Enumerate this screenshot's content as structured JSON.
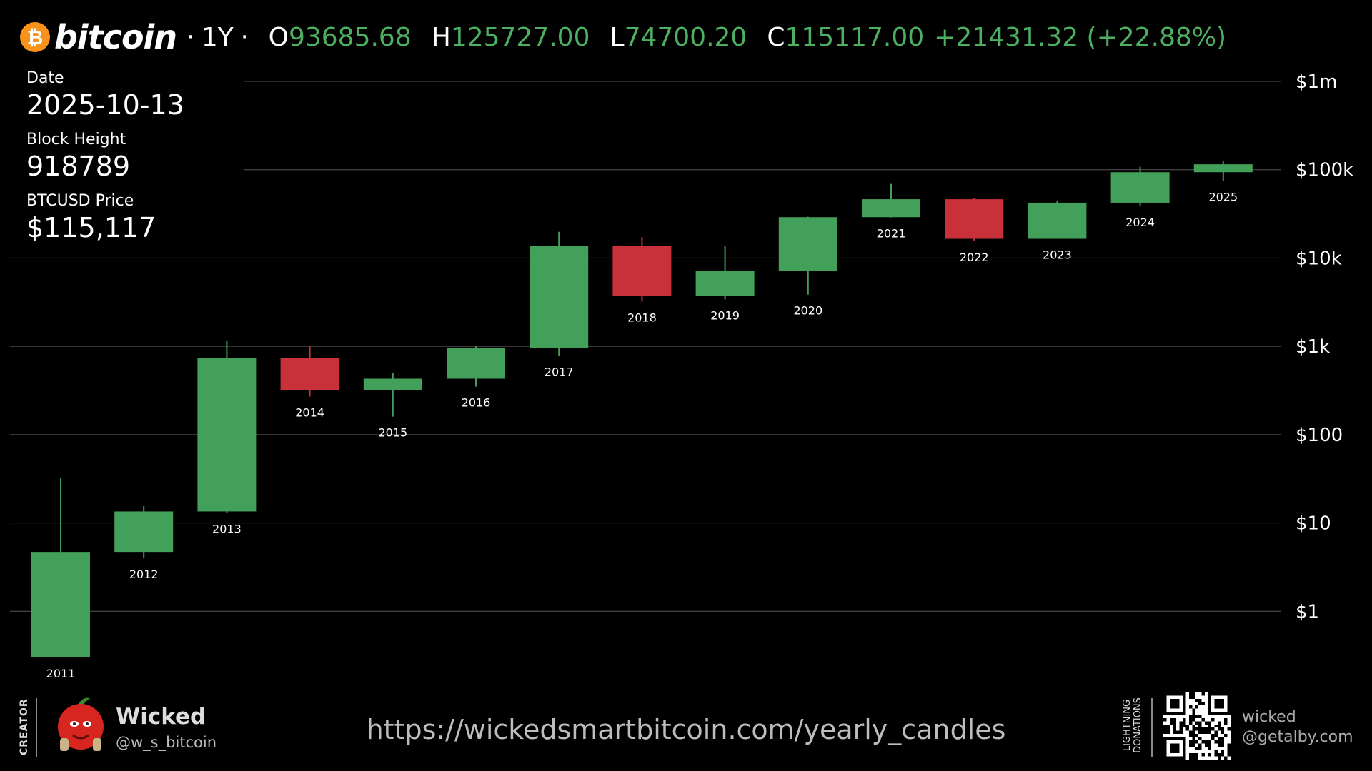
{
  "header": {
    "logo_symbol": "₿",
    "brand": "bitcoin",
    "separator": "·",
    "timeframe": "1Y",
    "open_label": "O",
    "open": "93685.68",
    "high_label": "H",
    "high": "125727.00",
    "low_label": "L",
    "low": "74700.20",
    "close_label": "C",
    "close": "115117.00",
    "change": "+21431.32 (+22.88%)"
  },
  "info": {
    "date_label": "Date",
    "date": "2025-10-13",
    "block_label": "Block Height",
    "block": "918789",
    "price_label": "BTCUSD Price",
    "price": "$115,117"
  },
  "chart_data": {
    "type": "candlestick",
    "y_scale": "log",
    "ylim": [
      0.1,
      1000000
    ],
    "y_ticks": [
      {
        "value": 1,
        "label": "$1"
      },
      {
        "value": 10,
        "label": "$10"
      },
      {
        "value": 100,
        "label": "$100"
      },
      {
        "value": 1000,
        "label": "$1k"
      },
      {
        "value": 10000,
        "label": "$10k"
      },
      {
        "value": 100000,
        "label": "$100k"
      },
      {
        "value": 1000000,
        "label": "$1m"
      }
    ],
    "grid": true,
    "candles": [
      {
        "year": "2011",
        "open": 0.3,
        "high": 32,
        "low": 0.3,
        "close": 4.7
      },
      {
        "year": "2012",
        "open": 4.7,
        "high": 15.5,
        "low": 4.0,
        "close": 13.5
      },
      {
        "year": "2013",
        "open": 13.5,
        "high": 1150,
        "low": 13,
        "close": 740
      },
      {
        "year": "2014",
        "open": 740,
        "high": 1000,
        "low": 270,
        "close": 320
      },
      {
        "year": "2015",
        "open": 320,
        "high": 500,
        "low": 160,
        "close": 430
      },
      {
        "year": "2016",
        "open": 430,
        "high": 1000,
        "low": 350,
        "close": 960
      },
      {
        "year": "2017",
        "open": 960,
        "high": 19800,
        "low": 780,
        "close": 13800
      },
      {
        "year": "2018",
        "open": 13800,
        "high": 17200,
        "low": 3200,
        "close": 3700
      },
      {
        "year": "2019",
        "open": 3700,
        "high": 13800,
        "low": 3400,
        "close": 7200
      },
      {
        "year": "2020",
        "open": 7200,
        "high": 29300,
        "low": 3850,
        "close": 29000
      },
      {
        "year": "2021",
        "open": 29000,
        "high": 69000,
        "low": 28800,
        "close": 46300
      },
      {
        "year": "2022",
        "open": 46300,
        "high": 48000,
        "low": 15500,
        "close": 16500
      },
      {
        "year": "2023",
        "open": 16500,
        "high": 44700,
        "low": 16500,
        "close": 42300
      },
      {
        "year": "2024",
        "open": 42300,
        "high": 108000,
        "low": 38500,
        "close": 93685.68
      },
      {
        "year": "2025",
        "open": 93685.68,
        "high": 125727.0,
        "low": 74700.2,
        "close": 115117.0
      }
    ],
    "colors": {
      "up": "#43a05a",
      "down": "#c8313a",
      "grid": "#555555",
      "text": "#ffffff"
    }
  },
  "footer": {
    "creator_label": "CREATOR",
    "creator_name": "Wicked",
    "creator_handle": "@w_s_bitcoin",
    "url": "https://wickedsmartbitcoin.com/yearly_candles",
    "donations_label_1": "LIGHTNING",
    "donations_label_2": "DONATIONS",
    "donate_name": "wicked",
    "donate_address": "@getalby.com"
  }
}
